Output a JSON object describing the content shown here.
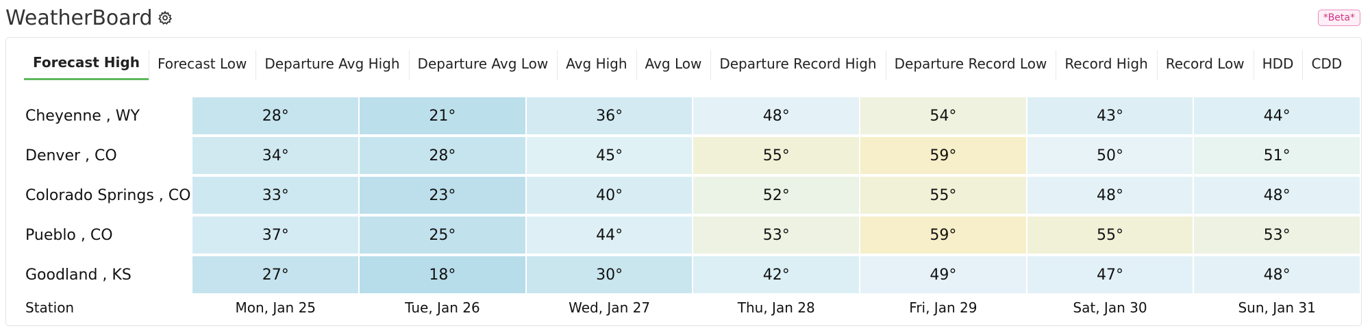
{
  "app": {
    "title": "WeatherBoard",
    "beta_label": "*Beta*",
    "settings_icon": "gear-icon"
  },
  "tabs": [
    {
      "label": "Forecast High",
      "active": true
    },
    {
      "label": "Forecast Low",
      "active": false
    },
    {
      "label": "Departure Avg High",
      "active": false
    },
    {
      "label": "Departure Avg Low",
      "active": false
    },
    {
      "label": "Avg High",
      "active": false
    },
    {
      "label": "Avg Low",
      "active": false
    },
    {
      "label": "Departure Record High",
      "active": false
    },
    {
      "label": "Departure Record Low",
      "active": false
    },
    {
      "label": "Record High",
      "active": false
    },
    {
      "label": "Record Low",
      "active": false
    },
    {
      "label": "HDD",
      "active": false
    },
    {
      "label": "CDD",
      "active": false
    }
  ],
  "table": {
    "station_header": "Station",
    "days": [
      "Mon, Jan 25",
      "Tue, Jan 26",
      "Wed, Jan 27",
      "Thu, Jan 28",
      "Fri, Jan 29",
      "Sat, Jan 30",
      "Sun, Jan 31"
    ],
    "rows": [
      {
        "station": "Cheyenne , WY",
        "values": [
          "28°",
          "21°",
          "36°",
          "48°",
          "54°",
          "43°",
          "44°"
        ]
      },
      {
        "station": "Denver , CO",
        "values": [
          "34°",
          "28°",
          "45°",
          "55°",
          "59°",
          "50°",
          "51°"
        ]
      },
      {
        "station": "Colorado Springs , CO",
        "values": [
          "33°",
          "23°",
          "40°",
          "52°",
          "55°",
          "48°",
          "48°"
        ]
      },
      {
        "station": "Pueblo , CO",
        "values": [
          "37°",
          "25°",
          "44°",
          "53°",
          "59°",
          "55°",
          "53°"
        ]
      },
      {
        "station": "Goodland , KS",
        "values": [
          "27°",
          "18°",
          "30°",
          "42°",
          "49°",
          "47°",
          "48°"
        ]
      }
    ],
    "colors": {
      "18": "#b7dcea",
      "21": "#bcdfec",
      "23": "#bddfec",
      "25": "#c1e1ed",
      "27": "#c4e3ee",
      "28": "#c6e4ee",
      "30": "#c9e6ef",
      "33": "#cee8f1",
      "34": "#d0e9f1",
      "36": "#d3eaf2",
      "37": "#d5ebf3",
      "40": "#d8edf3",
      "42": "#dbeff5",
      "43": "#ddeff5",
      "44": "#def0f5",
      "45": "#e0f1f6",
      "47": "#e2f1f7",
      "48": "#e4f2f7",
      "49": "#e6f2f8",
      "50": "#e8f3f8",
      "51": "#e8f4ef",
      "52": "#ebf3e6",
      "53": "#edf2e3",
      "54": "#eff2df",
      "55": "#f1f1d8",
      "59": "#f6efc9"
    }
  }
}
